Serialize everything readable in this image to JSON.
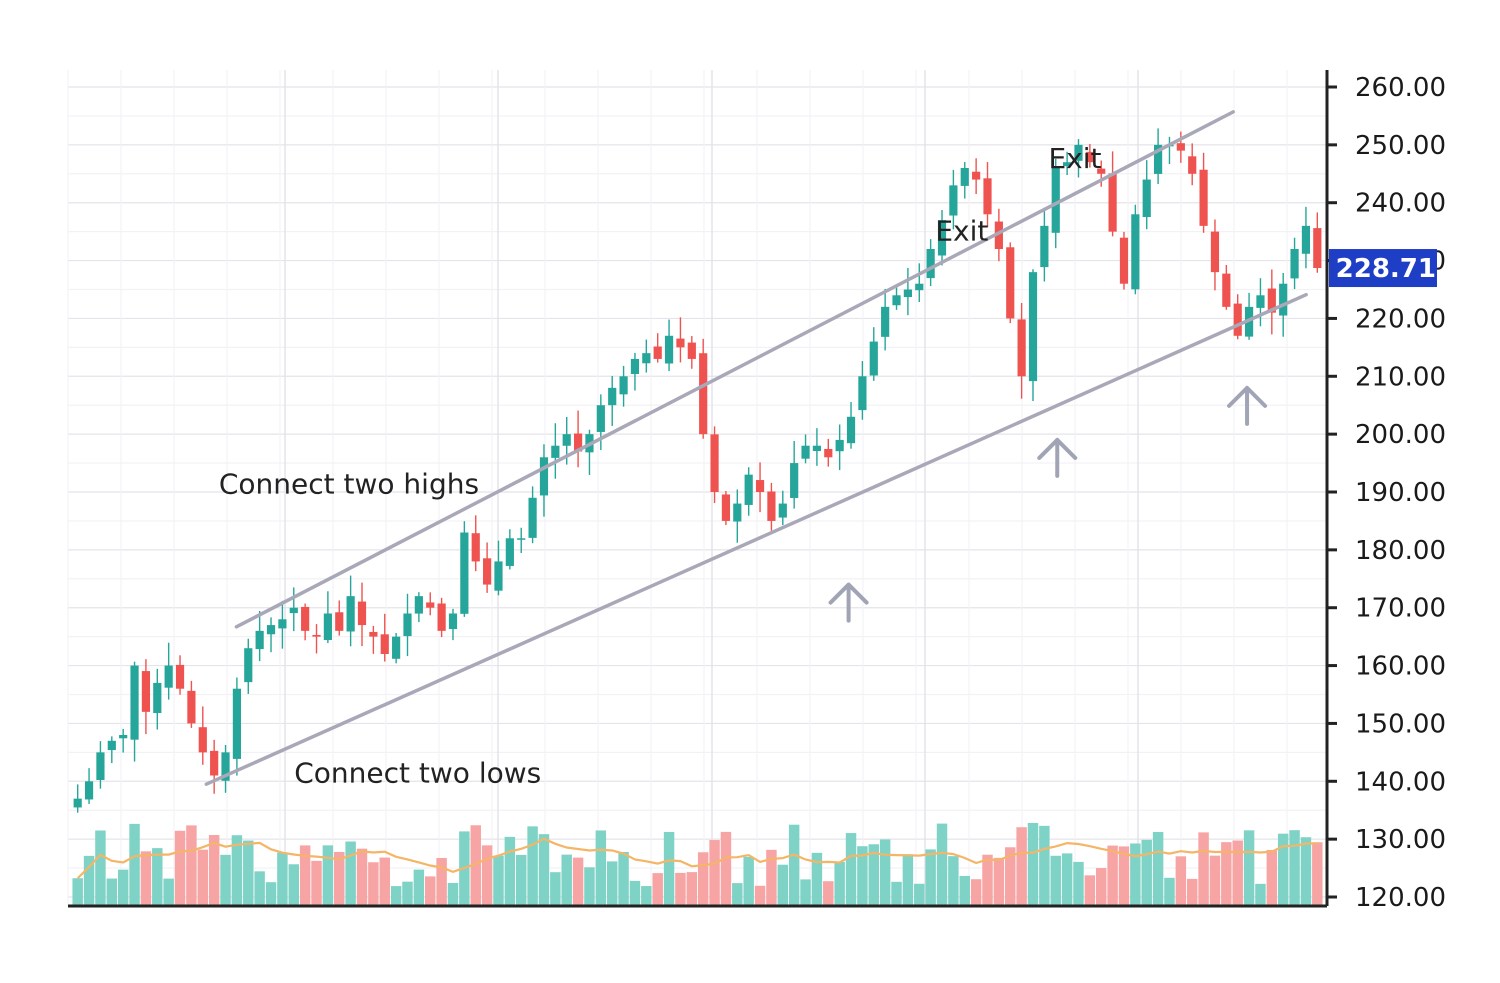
{
  "chart_data": {
    "type": "candlestick",
    "title": "",
    "xlabel": "",
    "ylabel": "",
    "ylim": [
      120,
      260
    ],
    "y_ticks": [
      "260.00",
      "250.00",
      "240.00",
      "230.00",
      "220.00",
      "210.00",
      "200.00",
      "190.00",
      "180.00",
      "170.00",
      "160.00",
      "150.00",
      "140.00",
      "130.00",
      "120.00"
    ],
    "grid": true,
    "last_price": "228.71",
    "colors": {
      "up": "#26a69a",
      "down": "#ef5350",
      "up_volume": "#7fd3c6",
      "down_volume": "#f7a4a4",
      "volume_ma": "#f5b567",
      "trendline": "#a9a8b8",
      "arrow": "#a0a4b4",
      "price_badge": "#1f3ec6",
      "axis": "#222222",
      "grid": "#ececf0"
    },
    "closes": [
      137,
      140,
      145,
      147,
      148,
      160,
      152,
      157,
      160,
      156,
      150,
      145,
      141,
      145,
      156,
      163,
      166,
      167,
      168,
      170,
      166,
      165,
      169,
      166,
      172,
      167,
      165,
      162,
      165,
      169,
      172,
      170,
      166,
      169,
      183,
      178,
      174,
      178,
      182,
      182,
      189,
      196,
      198,
      200,
      197,
      200,
      205,
      208,
      210,
      213,
      214,
      213,
      217,
      215,
      213,
      200,
      190,
      185,
      188,
      193,
      190,
      185,
      188,
      195,
      198,
      198,
      196,
      199,
      203,
      210,
      216,
      222,
      224,
      225,
      226,
      232,
      237,
      243,
      246,
      244,
      238,
      232,
      220,
      210,
      228,
      236,
      246,
      247,
      250,
      247,
      245,
      235,
      226,
      238,
      244,
      250,
      250,
      249,
      245,
      236,
      228,
      222,
      217,
      222,
      224,
      221,
      226,
      232,
      236,
      228.71
    ],
    "trendlines": [
      {
        "from": [
          0.134,
          166.7
        ],
        "to": [
          0.927,
          255.7
        ]
      },
      {
        "from": [
          0.11,
          139.5
        ],
        "to": [
          0.985,
          224.1
        ]
      }
    ],
    "support_arrows": [
      {
        "at": [
          0.621,
          174
        ]
      },
      {
        "at": [
          0.787,
          199
        ]
      },
      {
        "at": [
          0.938,
          208
        ]
      }
    ],
    "annotations": [
      {
        "text": "Connect two highs",
        "at": [
          0.12,
          189.7
        ]
      },
      {
        "text": "Connect two lows",
        "at": [
          0.18,
          139.8
        ]
      },
      {
        "text": "Exit",
        "at": [
          0.69,
          233.5
        ]
      },
      {
        "text": "Exit",
        "at": [
          0.78,
          246
        ]
      }
    ]
  }
}
